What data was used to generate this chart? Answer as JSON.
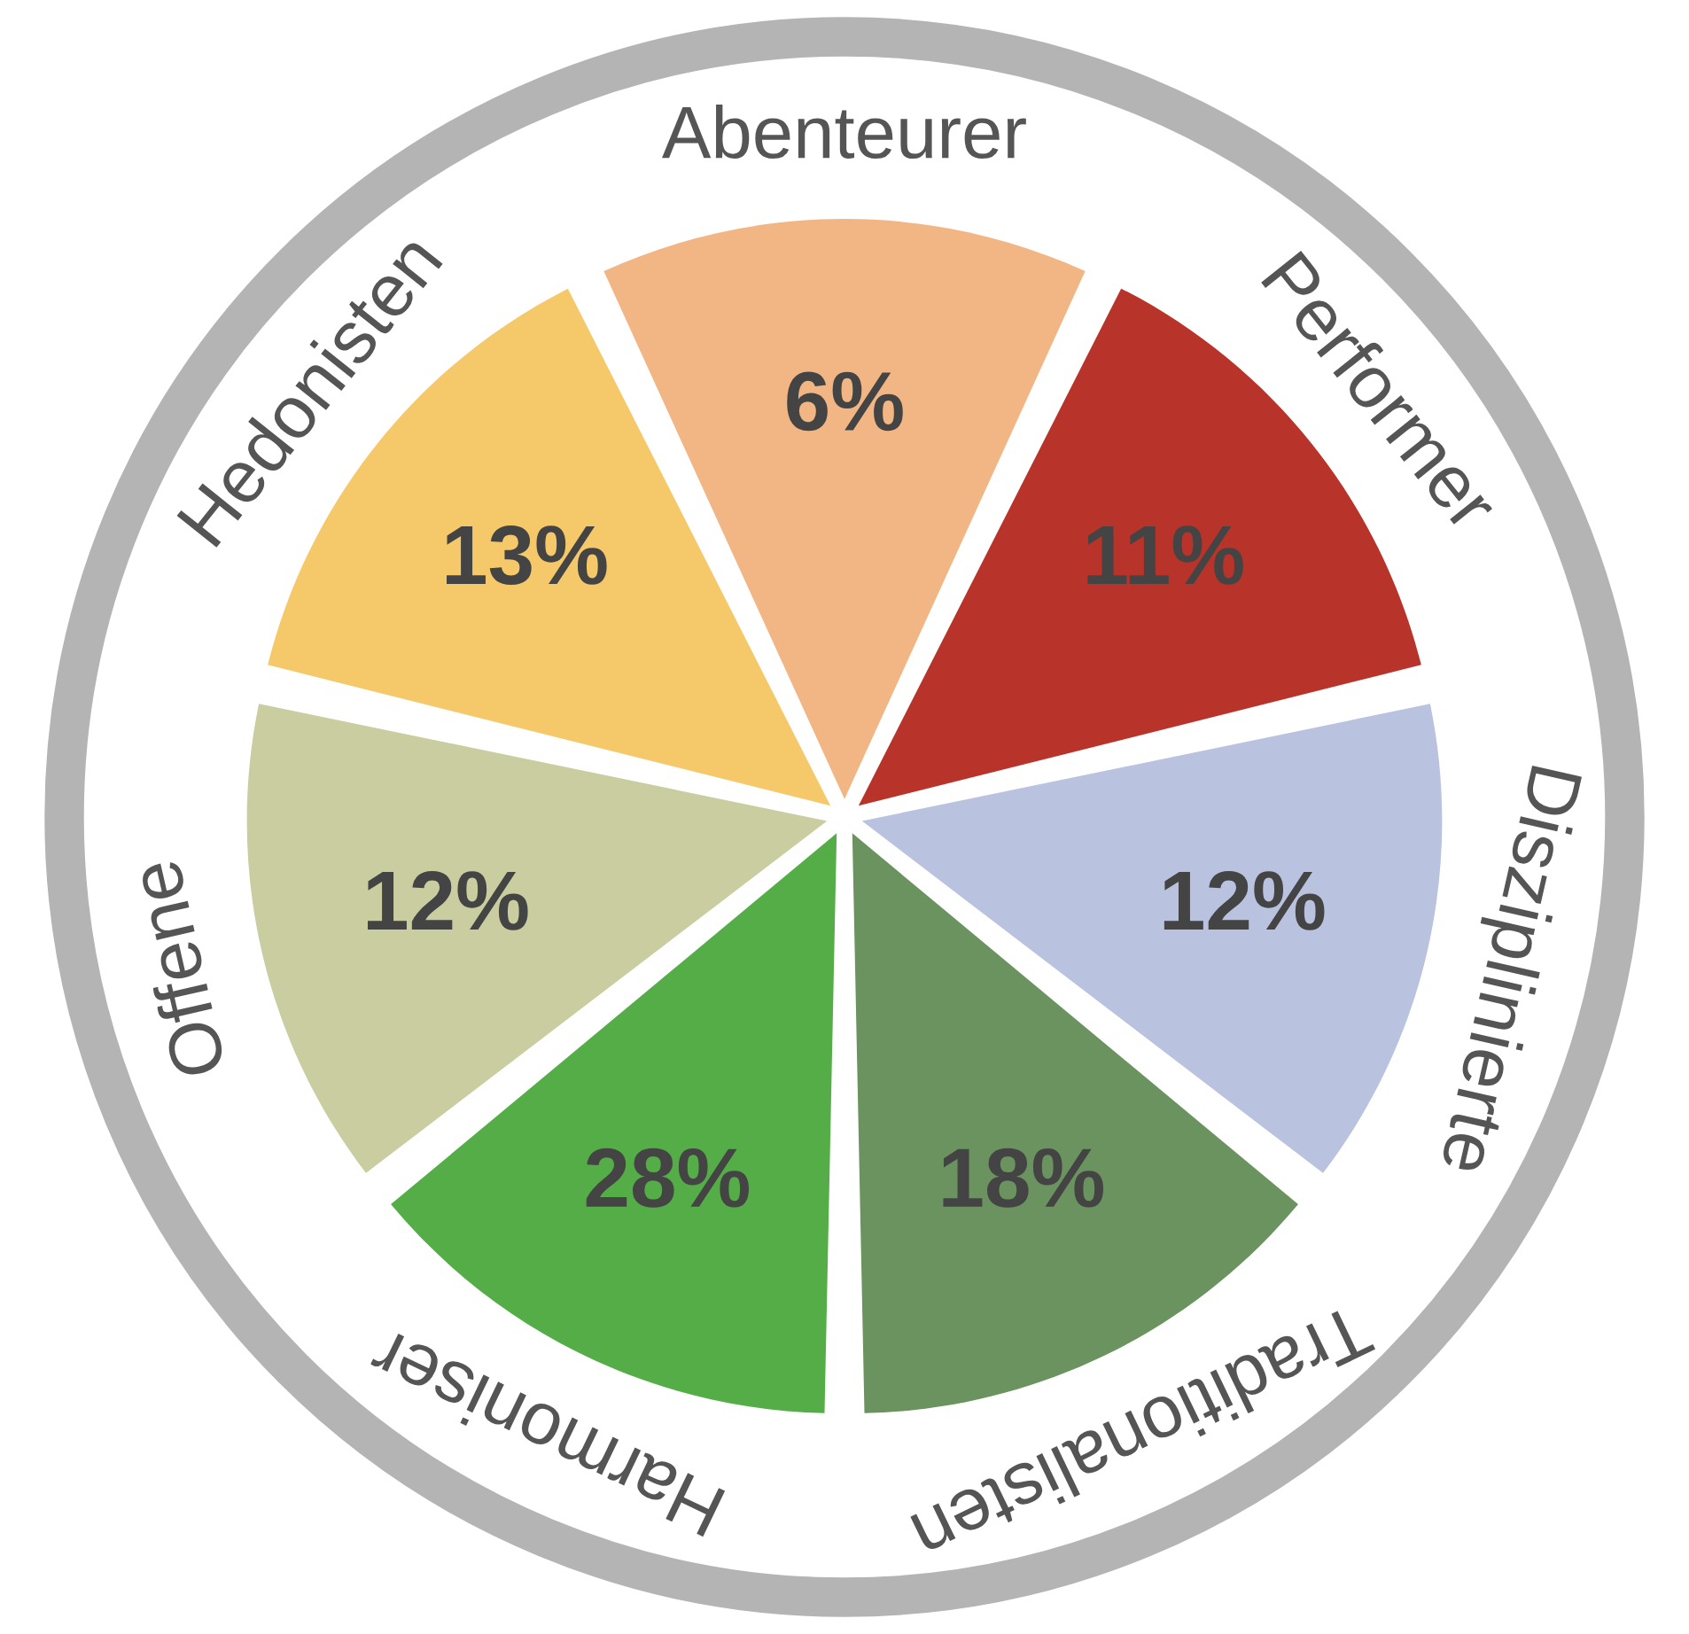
{
  "chart_data": {
    "type": "other",
    "categories": [
      "Abenteurer",
      "Performer",
      "Disziplinierte",
      "Traditionalisten",
      "Harmoniser",
      "Offene",
      "Hedonisten"
    ],
    "values": [
      6,
      11,
      12,
      18,
      28,
      12,
      13
    ],
    "value_labels": [
      "6%",
      "11%",
      "12%",
      "18%",
      "28%",
      "12%",
      "13%"
    ],
    "colors": [
      "#f2b584",
      "#b8342a",
      "#b9c3df",
      "#6b935f",
      "#55ad48",
      "#c9cda0",
      "#f5c96a"
    ]
  }
}
